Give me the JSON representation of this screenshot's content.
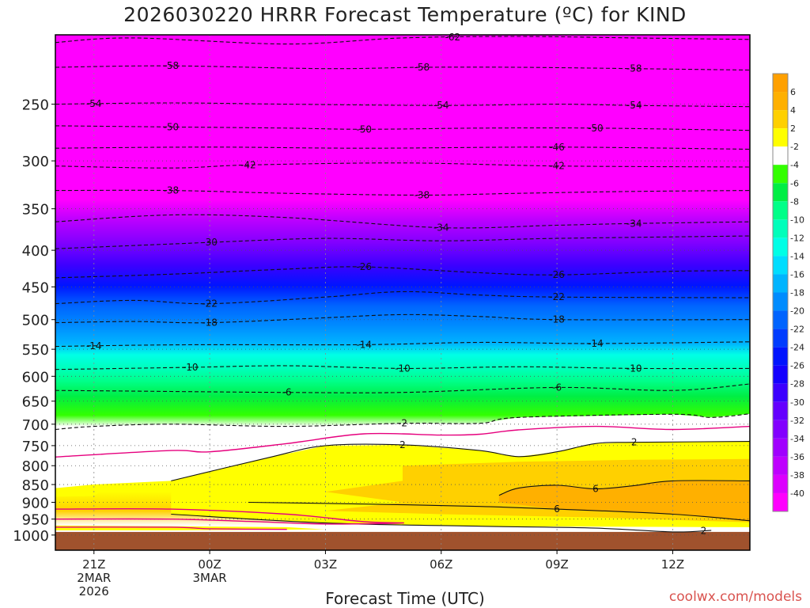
{
  "chart_data": {
    "type": "heatmap",
    "title": "2026030220 HRRR Forecast Temperature (ºC) for KIND",
    "xlabel": "Forecast Time (UTC)",
    "x_ticks": [
      {
        "hour": 1,
        "label": [
          "21Z",
          "2MAR",
          "2026"
        ]
      },
      {
        "hour": 4,
        "label": [
          "00Z",
          "3MAR"
        ]
      },
      {
        "hour": 7,
        "label": [
          "03Z"
        ]
      },
      {
        "hour": 10,
        "label": [
          "06Z"
        ]
      },
      {
        "hour": 13,
        "label": [
          "09Z"
        ]
      },
      {
        "hour": 16,
        "label": [
          "12Z"
        ]
      }
    ],
    "x_range_hours": [
      0,
      18
    ],
    "y_axis": "pressure_hPa",
    "y_log_scale": true,
    "y_range_hPa": [
      1050,
      200
    ],
    "y_ticks": [
      250,
      300,
      350,
      400,
      450,
      500,
      550,
      600,
      650,
      700,
      750,
      800,
      850,
      900,
      950,
      1000
    ],
    "grid": "dotted",
    "ground_level_hPa": 990,
    "colorbar": {
      "placement": "right",
      "bands": [
        {
          "label": "6",
          "color": "#ffb000"
        },
        {
          "label": "4",
          "color": "#ffd000"
        },
        {
          "label": "2",
          "color": "#ffff00"
        },
        {
          "label": "-2",
          "color": "#ffffff"
        },
        {
          "label": "-4",
          "color": "#33ff00"
        },
        {
          "label": "-6",
          "color": "#00ee44"
        },
        {
          "label": "-8",
          "color": "#00ff88"
        },
        {
          "label": "-10",
          "color": "#00ffbb"
        },
        {
          "label": "-12",
          "color": "#00ffe6"
        },
        {
          "label": "-14",
          "color": "#00ddff"
        },
        {
          "label": "-16",
          "color": "#00b4ff"
        },
        {
          "label": "-18",
          "color": "#008cff"
        },
        {
          "label": "-20",
          "color": "#0064ff"
        },
        {
          "label": "-22",
          "color": "#003cff"
        },
        {
          "label": "-24",
          "color": "#0014ff"
        },
        {
          "label": "-26",
          "color": "#1400ff"
        },
        {
          "label": "-28",
          "color": "#3c00ff"
        },
        {
          "label": "-30",
          "color": "#6400ff"
        },
        {
          "label": "-32",
          "color": "#8200ff"
        },
        {
          "label": "-34",
          "color": "#a000ff"
        },
        {
          "label": "-36",
          "color": "#be00ff"
        },
        {
          "label": "-38",
          "color": "#dc00ff"
        },
        {
          "label": "-40",
          "color": "#ff00ff"
        }
      ],
      "top_color": "#ffa000"
    },
    "contours": [
      {
        "value": -62,
        "labels_at_hours": [
          10.3
        ],
        "points": [
          [
            0,
            205
          ],
          [
            2,
            202
          ],
          [
            6,
            206
          ],
          [
            9,
            202
          ],
          [
            12,
            201
          ],
          [
            15,
            202
          ],
          [
            18,
            203
          ]
        ]
      },
      {
        "value": -58,
        "labels_at_hours": [
          3,
          9.5,
          15
        ],
        "points": [
          [
            0,
            222
          ],
          [
            3,
            221
          ],
          [
            7,
            223
          ],
          [
            9.5,
            222
          ],
          [
            12,
            222
          ],
          [
            15,
            223
          ],
          [
            18,
            224
          ]
        ]
      },
      {
        "value": -54,
        "labels_at_hours": [
          1,
          10,
          15
        ],
        "points": [
          [
            0,
            250
          ],
          [
            3,
            249
          ],
          [
            6,
            250
          ],
          [
            10,
            251
          ],
          [
            13,
            250
          ],
          [
            15,
            251
          ],
          [
            18,
            252
          ]
        ]
      },
      {
        "value": -50,
        "labels_at_hours": [
          3,
          8,
          14
        ],
        "points": [
          [
            0,
            268
          ],
          [
            3,
            269
          ],
          [
            6,
            270
          ],
          [
            8,
            271
          ],
          [
            11,
            270
          ],
          [
            14,
            270
          ],
          [
            18,
            272
          ]
        ]
      },
      {
        "value": -46,
        "labels_at_hours": [
          13
        ],
        "points": [
          [
            0,
            288
          ],
          [
            4,
            287
          ],
          [
            8,
            288
          ],
          [
            13,
            287
          ],
          [
            18,
            289
          ]
        ]
      },
      {
        "value": -42,
        "labels_at_hours": [
          5,
          13
        ],
        "points": [
          [
            0,
            305
          ],
          [
            3,
            307
          ],
          [
            5,
            304
          ],
          [
            9,
            302
          ],
          [
            13,
            305
          ],
          [
            18,
            306
          ]
        ]
      },
      {
        "value": -38,
        "labels_at_hours": [
          3,
          9.5
        ],
        "points": [
          [
            0,
            330
          ],
          [
            3,
            330
          ],
          [
            6,
            333
          ],
          [
            9.5,
            335
          ],
          [
            12,
            333
          ],
          [
            15,
            331
          ],
          [
            18,
            330
          ]
        ]
      },
      {
        "value": -34,
        "labels_at_hours": [
          10,
          15
        ],
        "points": [
          [
            0,
            365
          ],
          [
            3,
            357
          ],
          [
            6,
            360
          ],
          [
            10,
            372
          ],
          [
            13,
            369
          ],
          [
            15,
            367
          ],
          [
            18,
            365
          ]
        ]
      },
      {
        "value": -30,
        "labels_at_hours": [
          4
        ],
        "points": [
          [
            0,
            398
          ],
          [
            3,
            392
          ],
          [
            4,
            390
          ],
          [
            7,
            385
          ],
          [
            10,
            388
          ],
          [
            13,
            385
          ],
          [
            18,
            382
          ]
        ]
      },
      {
        "value": -26,
        "labels_at_hours": [
          8,
          13
        ],
        "points": [
          [
            0,
            437
          ],
          [
            3,
            432
          ],
          [
            6,
            425
          ],
          [
            8,
            422
          ],
          [
            11,
            430
          ],
          [
            13,
            433
          ],
          [
            16,
            428
          ],
          [
            18,
            427
          ]
        ]
      },
      {
        "value": -22,
        "labels_at_hours": [
          4,
          13
        ],
        "points": [
          [
            0,
            475
          ],
          [
            2,
            470
          ],
          [
            4,
            475
          ],
          [
            7,
            465
          ],
          [
            9,
            457
          ],
          [
            11,
            462
          ],
          [
            13,
            465
          ],
          [
            18,
            466
          ]
        ]
      },
      {
        "value": -18,
        "labels_at_hours": [
          4,
          13
        ],
        "points": [
          [
            0,
            505
          ],
          [
            2,
            503
          ],
          [
            4,
            505
          ],
          [
            7,
            497
          ],
          [
            9,
            492
          ],
          [
            11,
            495
          ],
          [
            13,
            500
          ],
          [
            18,
            500
          ]
        ]
      },
      {
        "value": -14,
        "labels_at_hours": [
          1,
          8,
          14
        ],
        "points": [
          [
            0,
            545
          ],
          [
            2,
            543
          ],
          [
            4,
            542
          ],
          [
            8,
            542
          ],
          [
            11,
            538
          ],
          [
            14,
            540
          ],
          [
            18,
            537
          ]
        ]
      },
      {
        "value": -10,
        "labels_at_hours": [
          3.5,
          9,
          15
        ],
        "points": [
          [
            0,
            587
          ],
          [
            3.5,
            583
          ],
          [
            6,
            580
          ],
          [
            9,
            585
          ],
          [
            12,
            582
          ],
          [
            15,
            585
          ],
          [
            18,
            585
          ]
        ]
      },
      {
        "value": -6,
        "labels_at_hours": [
          6,
          13
        ],
        "points": [
          [
            0,
            628
          ],
          [
            3,
            630
          ],
          [
            6,
            632
          ],
          [
            9,
            632
          ],
          [
            13,
            622
          ],
          [
            16,
            628
          ],
          [
            18,
            615
          ]
        ]
      },
      {
        "value": -2,
        "labels_at_hours": [
          9
        ],
        "points": [
          [
            0,
            712
          ],
          [
            1,
            705
          ],
          [
            3,
            700
          ],
          [
            6,
            705
          ],
          [
            9,
            698
          ],
          [
            11,
            698
          ],
          [
            12,
            685
          ],
          [
            16,
            678
          ],
          [
            17,
            685
          ],
          [
            18,
            677
          ]
        ]
      },
      {
        "value": 2,
        "labels_at_hours": [
          9,
          15
        ],
        "points": [
          [
            3,
            840
          ],
          [
            5.5,
            780
          ],
          [
            7,
            750
          ],
          [
            9,
            748
          ],
          [
            11,
            762
          ],
          [
            12,
            777
          ],
          [
            13,
            765
          ],
          [
            14,
            745
          ],
          [
            15,
            742
          ],
          [
            18,
            740
          ]
        ]
      },
      {
        "value": 6,
        "labels_at_hours": [
          14
        ],
        "points": [
          [
            11.5,
            880
          ],
          [
            12,
            860
          ],
          [
            13,
            852
          ],
          [
            14,
            862
          ],
          [
            15,
            853
          ],
          [
            16,
            840
          ],
          [
            18,
            840
          ]
        ]
      },
      {
        "value": 6,
        "labels_at_hours": [
          13
        ],
        "points": [
          [
            5,
            900
          ],
          [
            8,
            905
          ],
          [
            11,
            912
          ],
          [
            13,
            920
          ],
          [
            16,
            935
          ],
          [
            18,
            955
          ]
        ]
      },
      {
        "value": 2,
        "labels_at_hours": [
          16.8
        ],
        "points": [
          [
            3,
            935
          ],
          [
            7,
            962
          ],
          [
            11,
            972
          ],
          [
            14,
            978
          ],
          [
            16,
            990
          ],
          [
            17,
            985
          ]
        ]
      }
    ],
    "pink_isotherm_0C": [
      {
        "points": [
          [
            0,
            778
          ],
          [
            3,
            762
          ],
          [
            4,
            765
          ],
          [
            6,
            745
          ],
          [
            8,
            722
          ],
          [
            10,
            725
          ],
          [
            11,
            723
          ],
          [
            12,
            713
          ],
          [
            14,
            705
          ],
          [
            16,
            712
          ],
          [
            18,
            705
          ]
        ]
      },
      {
        "points": [
          [
            0,
            920
          ],
          [
            3,
            920
          ],
          [
            6,
            935
          ],
          [
            8,
            958
          ],
          [
            9,
            962
          ],
          [
            7,
            965
          ],
          [
            5,
            957
          ],
          [
            3,
            950
          ],
          [
            0,
            950
          ]
        ],
        "closed": false
      }
    ]
  },
  "footer": {
    "credit": "coolwx.com/models"
  }
}
